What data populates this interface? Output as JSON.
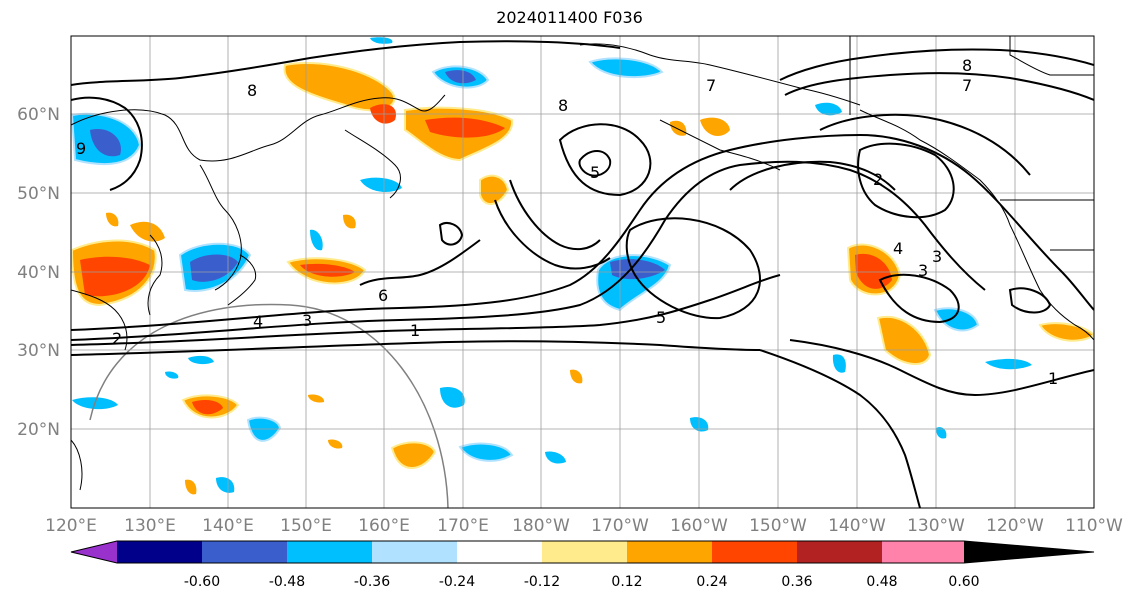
{
  "title": "2024011400 F036",
  "map": {
    "lon_labels": [
      "120°E",
      "130°E",
      "140°E",
      "150°E",
      "160°E",
      "170°E",
      "180°W",
      "170°W",
      "160°W",
      "150°W",
      "140°W",
      "130°W",
      "120°W",
      "110°W"
    ],
    "lat_labels": [
      "60°N",
      "50°N",
      "40°N",
      "30°N",
      "20°N"
    ],
    "contour_labels": [
      "8",
      "8",
      "7",
      "8",
      "7",
      "2",
      "4",
      "3",
      "3",
      "6",
      "5",
      "4",
      "3",
      "2",
      "1",
      "1",
      "5",
      "9"
    ]
  },
  "colorbar": {
    "colors": [
      "#9932cc",
      "#00008b",
      "#3a5fcd",
      "#00bfff",
      "#b0e2ff",
      "#ffffff",
      "#ffeb8c",
      "#ffa500",
      "#ff4500",
      "#b22222",
      "#ff82ab"
    ],
    "tick_labels": [
      "-0.60",
      "-0.48",
      "-0.36",
      "-0.24",
      "-0.12",
      "0.12",
      "0.24",
      "0.36",
      "0.48",
      "0.60"
    ]
  }
}
